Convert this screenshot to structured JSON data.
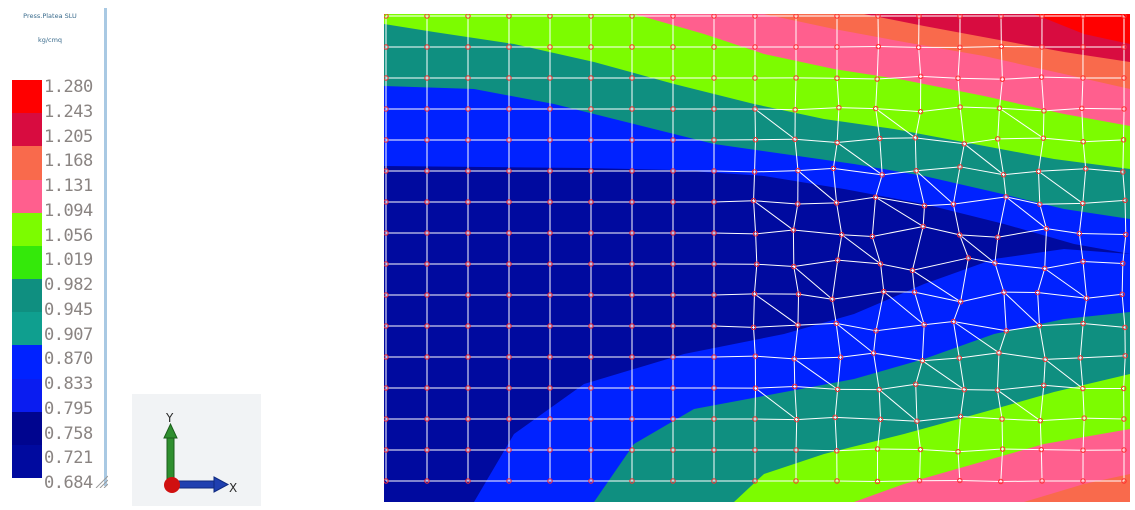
{
  "legend": {
    "title": "Press.Platea SLU",
    "unit": "kg/cmq",
    "values": [
      "1.280",
      "1.243",
      "1.205",
      "1.168",
      "1.131",
      "1.094",
      "1.056",
      "1.019",
      "0.982",
      "0.945",
      "0.907",
      "0.870",
      "0.833",
      "0.795",
      "0.758",
      "0.721",
      "0.684"
    ],
    "band_colors": [
      "#ff0000",
      "#d80c40",
      "#f96a4c",
      "#ff5f8e",
      "#7cfc00",
      "#34e90a",
      "#0f8f80",
      "#0f9f8f",
      "#0022ff",
      "#0a1cf0",
      "#00058f",
      "#000a9f"
    ]
  },
  "axes": {
    "y_label": "Y",
    "x_label": "X",
    "colors": {
      "y_axis": "#2f8f2f",
      "x_axis": "#1f3fb0",
      "origin": "#d01010"
    }
  },
  "mesh": {
    "colors": {
      "red": "#ff0000",
      "crimson": "#d80c40",
      "orange": "#f96a4c",
      "pink": "#ff5f8e",
      "green": "#7cfc00",
      "teal": "#0f8f80",
      "blue": "#0022ff",
      "navy": "#000a9f",
      "grid_line": "#ffffff",
      "node": "#ff3030"
    }
  }
}
